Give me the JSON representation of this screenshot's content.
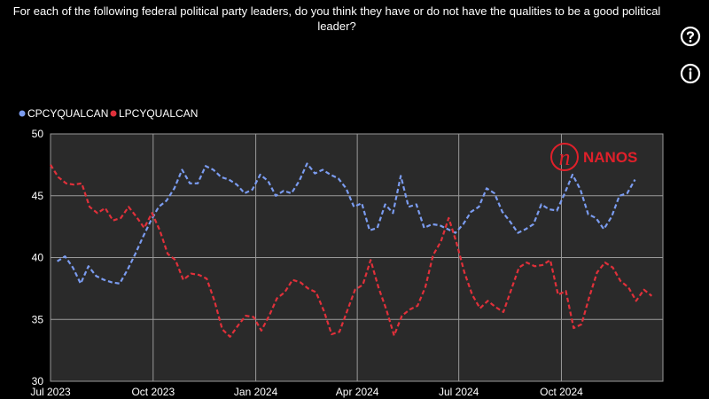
{
  "title": "For each of the following federal political party leaders, do you think they have or do not have the qualities to be a good political leader?",
  "icons": {
    "help": "question-circle-icon",
    "info": "info-circle-icon"
  },
  "watermark": {
    "letter": "n",
    "text": "NANOS",
    "color": "#e0202a"
  },
  "colors": {
    "background": "#000000",
    "plot_area": "#2a2a2a",
    "grid": "#9a9a9a"
  },
  "chart_data": {
    "type": "line",
    "title": "",
    "xlabel": "",
    "ylabel": "",
    "ylim": [
      30,
      50
    ],
    "yticks": [
      "50",
      "45",
      "40",
      "35",
      "30"
    ],
    "xticks": [
      "Jul 2023",
      "Oct 2023",
      "Jan 2024",
      "Apr 2024",
      "Jul 2024",
      "Oct 2024"
    ],
    "xrange": [
      "2023-07-01",
      "2024-12-31"
    ],
    "grid": true,
    "legend_position": "top-left",
    "line_style": "dashed",
    "series": [
      {
        "name": "CPCYQUALCAN",
        "color": "#7b9cf0",
        "points": [
          [
            "2023-07-07",
            39.7
          ],
          [
            "2023-07-14",
            40.1
          ],
          [
            "2023-07-21",
            39.2
          ],
          [
            "2023-07-28",
            37.9
          ],
          [
            "2023-08-04",
            39.3
          ],
          [
            "2023-08-11",
            38.5
          ],
          [
            "2023-08-18",
            38.2
          ],
          [
            "2023-08-25",
            38.0
          ],
          [
            "2023-09-01",
            37.9
          ],
          [
            "2023-09-08",
            39.0
          ],
          [
            "2023-09-15",
            40.3
          ],
          [
            "2023-09-22",
            41.7
          ],
          [
            "2023-09-29",
            43.0
          ],
          [
            "2023-10-06",
            44.1
          ],
          [
            "2023-10-13",
            44.6
          ],
          [
            "2023-10-20",
            45.6
          ],
          [
            "2023-10-27",
            47.1
          ],
          [
            "2023-11-03",
            46.0
          ],
          [
            "2023-11-10",
            46.0
          ],
          [
            "2023-11-17",
            47.4
          ],
          [
            "2023-11-24",
            47.1
          ],
          [
            "2023-12-01",
            46.5
          ],
          [
            "2023-12-08",
            46.3
          ],
          [
            "2023-12-15",
            45.9
          ],
          [
            "2023-12-22",
            45.2
          ],
          [
            "2023-12-29",
            45.5
          ],
          [
            "2024-01-05",
            46.7
          ],
          [
            "2024-01-12",
            46.2
          ],
          [
            "2024-01-19",
            45.0
          ],
          [
            "2024-01-26",
            45.4
          ],
          [
            "2024-02-02",
            45.2
          ],
          [
            "2024-02-09",
            46.2
          ],
          [
            "2024-02-16",
            47.6
          ],
          [
            "2024-02-23",
            46.8
          ],
          [
            "2024-03-01",
            47.1
          ],
          [
            "2024-03-08",
            46.7
          ],
          [
            "2024-03-15",
            46.4
          ],
          [
            "2024-03-22",
            45.6
          ],
          [
            "2024-03-29",
            44.1
          ],
          [
            "2024-04-05",
            44.4
          ],
          [
            "2024-04-12",
            42.2
          ],
          [
            "2024-04-19",
            42.4
          ],
          [
            "2024-04-26",
            44.3
          ],
          [
            "2024-05-03",
            43.6
          ],
          [
            "2024-05-10",
            46.6
          ],
          [
            "2024-05-17",
            44.1
          ],
          [
            "2024-05-24",
            44.3
          ],
          [
            "2024-05-31",
            42.4
          ],
          [
            "2024-06-07",
            42.7
          ],
          [
            "2024-06-14",
            42.6
          ],
          [
            "2024-06-21",
            42.3
          ],
          [
            "2024-06-28",
            42.0
          ],
          [
            "2024-07-05",
            42.7
          ],
          [
            "2024-07-12",
            43.7
          ],
          [
            "2024-07-19",
            44.1
          ],
          [
            "2024-07-26",
            45.6
          ],
          [
            "2024-08-02",
            45.2
          ],
          [
            "2024-08-09",
            43.7
          ],
          [
            "2024-08-16",
            42.9
          ],
          [
            "2024-08-23",
            42.0
          ],
          [
            "2024-08-30",
            42.3
          ],
          [
            "2024-09-06",
            42.7
          ],
          [
            "2024-09-13",
            44.3
          ],
          [
            "2024-09-20",
            43.9
          ],
          [
            "2024-09-27",
            43.8
          ],
          [
            "2024-10-04",
            45.2
          ],
          [
            "2024-10-11",
            46.7
          ],
          [
            "2024-10-18",
            45.5
          ],
          [
            "2024-10-25",
            43.5
          ],
          [
            "2024-11-01",
            43.2
          ],
          [
            "2024-11-08",
            42.3
          ],
          [
            "2024-11-15",
            43.3
          ],
          [
            "2024-11-22",
            45.0
          ],
          [
            "2024-11-29",
            45.2
          ],
          [
            "2024-12-06",
            46.3
          ]
        ]
      },
      {
        "name": "LPCYQUALCAN",
        "color": "#e0303a",
        "points": [
          [
            "2023-07-01",
            47.5
          ],
          [
            "2023-07-08",
            46.5
          ],
          [
            "2023-07-15",
            46.0
          ],
          [
            "2023-07-22",
            45.9
          ],
          [
            "2023-07-29",
            46.0
          ],
          [
            "2023-08-05",
            44.1
          ],
          [
            "2023-08-12",
            43.6
          ],
          [
            "2023-08-19",
            44.0
          ],
          [
            "2023-08-26",
            43.0
          ],
          [
            "2023-09-02",
            43.2
          ],
          [
            "2023-09-09",
            44.1
          ],
          [
            "2023-09-16",
            43.3
          ],
          [
            "2023-09-23",
            42.4
          ],
          [
            "2023-09-30",
            43.6
          ],
          [
            "2023-10-07",
            42.2
          ],
          [
            "2023-10-14",
            40.3
          ],
          [
            "2023-10-21",
            39.8
          ],
          [
            "2023-10-28",
            38.2
          ],
          [
            "2023-11-04",
            38.7
          ],
          [
            "2023-11-11",
            38.6
          ],
          [
            "2023-11-18",
            38.3
          ],
          [
            "2023-11-25",
            36.5
          ],
          [
            "2023-12-02",
            34.2
          ],
          [
            "2023-12-09",
            33.6
          ],
          [
            "2023-12-16",
            34.5
          ],
          [
            "2023-12-23",
            35.3
          ],
          [
            "2023-12-30",
            35.2
          ],
          [
            "2024-01-06",
            34.1
          ],
          [
            "2024-01-13",
            35.3
          ],
          [
            "2024-01-20",
            36.7
          ],
          [
            "2024-01-27",
            37.2
          ],
          [
            "2024-02-03",
            38.2
          ],
          [
            "2024-02-10",
            38.0
          ],
          [
            "2024-02-17",
            37.5
          ],
          [
            "2024-02-24",
            37.2
          ],
          [
            "2024-03-02",
            35.7
          ],
          [
            "2024-03-09",
            33.8
          ],
          [
            "2024-03-16",
            34.0
          ],
          [
            "2024-03-23",
            35.7
          ],
          [
            "2024-03-30",
            37.4
          ],
          [
            "2024-04-06",
            37.8
          ],
          [
            "2024-04-13",
            39.8
          ],
          [
            "2024-04-20",
            37.6
          ],
          [
            "2024-04-27",
            35.8
          ],
          [
            "2024-05-04",
            33.7
          ],
          [
            "2024-05-11",
            35.3
          ],
          [
            "2024-05-18",
            35.8
          ],
          [
            "2024-05-25",
            36.1
          ],
          [
            "2024-06-01",
            37.6
          ],
          [
            "2024-06-08",
            40.2
          ],
          [
            "2024-06-15",
            41.3
          ],
          [
            "2024-06-22",
            43.2
          ],
          [
            "2024-06-29",
            41.2
          ],
          [
            "2024-07-06",
            38.8
          ],
          [
            "2024-07-13",
            37.0
          ],
          [
            "2024-07-20",
            35.9
          ],
          [
            "2024-07-27",
            36.5
          ],
          [
            "2024-08-03",
            36.0
          ],
          [
            "2024-08-10",
            35.6
          ],
          [
            "2024-08-17",
            37.4
          ],
          [
            "2024-08-24",
            39.2
          ],
          [
            "2024-08-31",
            39.6
          ],
          [
            "2024-09-07",
            39.3
          ],
          [
            "2024-09-14",
            39.4
          ],
          [
            "2024-09-21",
            39.8
          ],
          [
            "2024-09-28",
            37.0
          ],
          [
            "2024-10-05",
            37.3
          ],
          [
            "2024-10-12",
            34.3
          ],
          [
            "2024-10-19",
            34.6
          ],
          [
            "2024-10-26",
            36.8
          ],
          [
            "2024-11-02",
            38.8
          ],
          [
            "2024-11-09",
            39.6
          ],
          [
            "2024-11-16",
            39.2
          ],
          [
            "2024-11-23",
            38.1
          ],
          [
            "2024-11-30",
            37.6
          ],
          [
            "2024-12-07",
            36.5
          ],
          [
            "2024-12-14",
            37.4
          ],
          [
            "2024-12-21",
            36.9
          ]
        ]
      }
    ]
  }
}
